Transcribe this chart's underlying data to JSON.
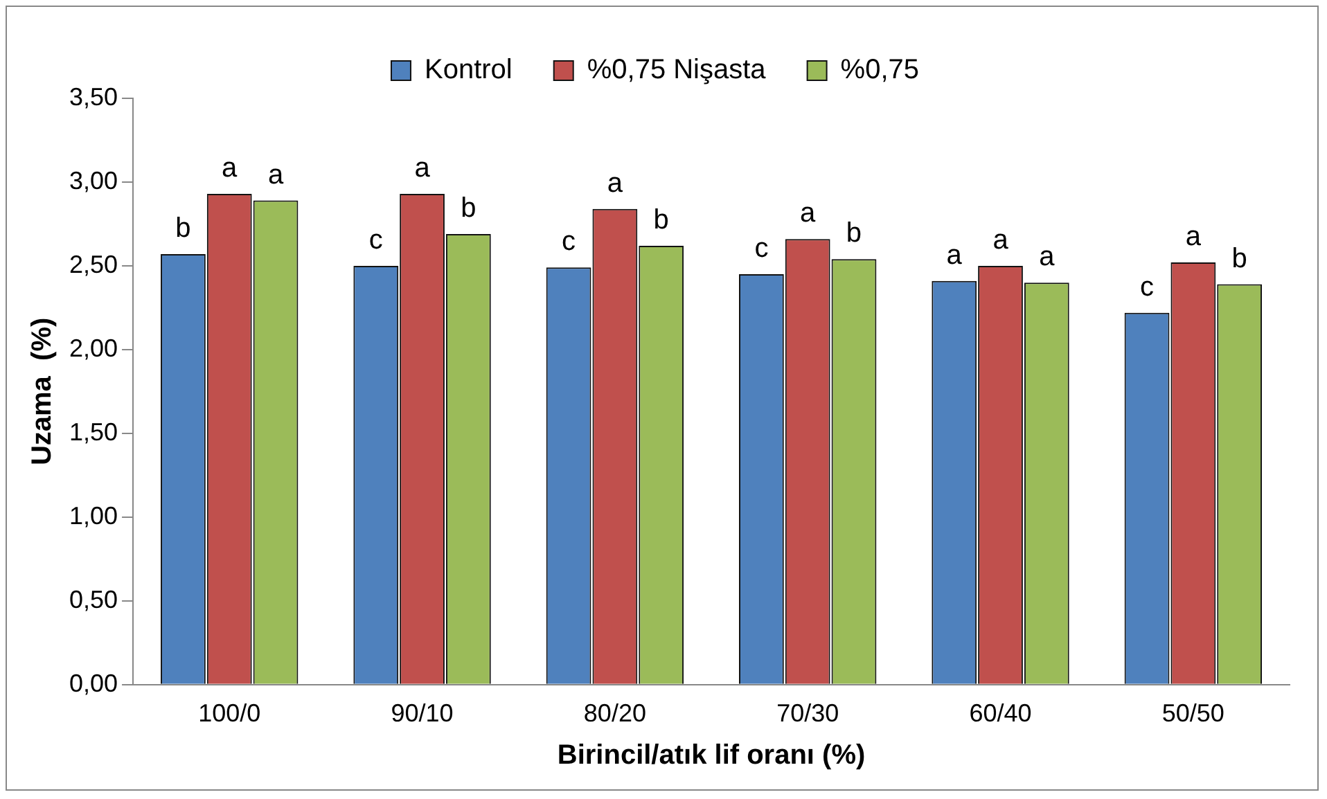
{
  "chart_data": {
    "type": "bar",
    "xlabel": "Birincil/atık lif oranı (%)",
    "ylabel": "Uzama  (%)",
    "categories": [
      "100/0",
      "90/10",
      "80/20",
      "70/30",
      "60/40",
      "50/50"
    ],
    "series": [
      {
        "name": "Kontrol",
        "color": "#4f81bd",
        "values": [
          2.57,
          2.5,
          2.49,
          2.45,
          2.41,
          2.22
        ],
        "value_labels": [
          "b",
          "c",
          "c",
          "c",
          "a",
          "c"
        ]
      },
      {
        "name": "%0,75 Nişasta",
        "color": "#c0504d",
        "values": [
          2.93,
          2.93,
          2.84,
          2.66,
          2.5,
          2.52
        ],
        "value_labels": [
          "a",
          "a",
          "a",
          "a",
          "a",
          "a"
        ]
      },
      {
        "name": "%0,75",
        "color": "#9bbb59",
        "values": [
          2.89,
          2.69,
          2.62,
          2.54,
          2.4,
          2.39
        ],
        "value_labels": [
          "a",
          "b",
          "b",
          "b",
          "a",
          "b"
        ]
      }
    ],
    "ylim": [
      0,
      3.5
    ],
    "yticks": [
      {
        "value": 0,
        "label": "0,00"
      },
      {
        "value": 0.5,
        "label": "0,50"
      },
      {
        "value": 1,
        "label": "1,00"
      },
      {
        "value": 1.5,
        "label": "1,50"
      },
      {
        "value": 2,
        "label": "2,00"
      },
      {
        "value": 2.5,
        "label": "2,50"
      },
      {
        "value": 3,
        "label": "3,00"
      },
      {
        "value": 3.5,
        "label": "3,50"
      }
    ],
    "grid": false,
    "legend": "top"
  }
}
